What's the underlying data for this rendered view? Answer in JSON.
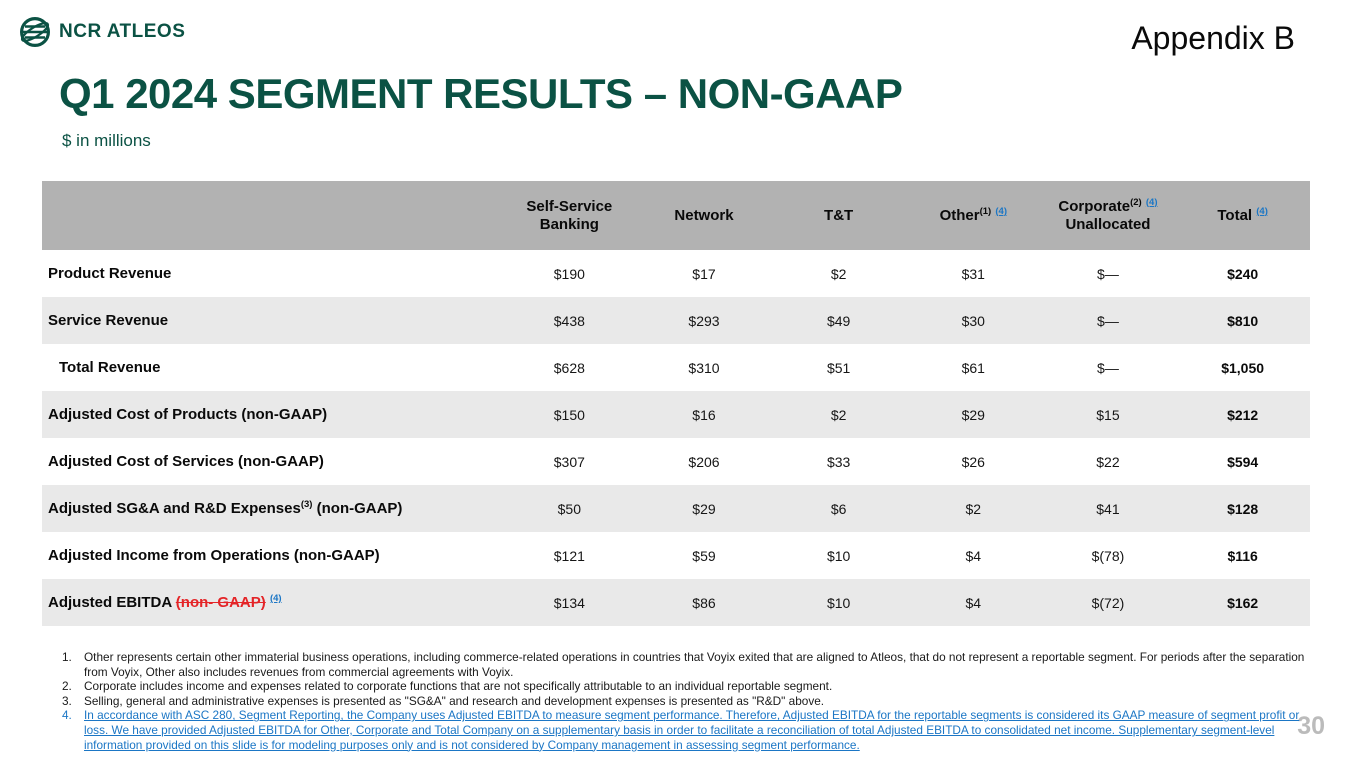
{
  "brand": {
    "logo_text": "NCR ATLEOS",
    "appendix_label": "Appendix B"
  },
  "header": {
    "title": "Q1 2024 SEGMENT RESULTS – NON-GAAP",
    "subtitle": "$ in millions"
  },
  "colors": {
    "brand_green": "#0B5244",
    "link_blue": "#1B76C5",
    "strike_red": "#E42528",
    "header_grey": "#B2B2B2",
    "row_grey": "#E9E9E9",
    "page_number_grey": "#BBBBBB"
  },
  "table": {
    "columns": [
      {
        "segments": [
          {
            "text": "Self-Service Banking"
          }
        ]
      },
      {
        "segments": [
          {
            "text": "Network"
          }
        ]
      },
      {
        "segments": [
          {
            "text": "T&T"
          }
        ]
      },
      {
        "segments": [
          {
            "text": "Other"
          },
          {
            "text": "(1)",
            "sup": true
          },
          {
            "text": " "
          },
          {
            "text": "(4)",
            "sup": true,
            "link": true
          }
        ]
      },
      {
        "segments": [
          {
            "text": "Corporate"
          },
          {
            "text": "(2)",
            "sup": true
          },
          {
            "text": " "
          },
          {
            "text": "(4)",
            "sup": true,
            "link": true
          },
          {
            "text": " Unallocated"
          }
        ]
      },
      {
        "segments": [
          {
            "text": "Total "
          },
          {
            "text": "(4)",
            "sup": true,
            "link": true
          }
        ]
      }
    ],
    "rows": [
      {
        "shaded": false,
        "indent": false,
        "label": [
          {
            "text": "Product Revenue"
          }
        ],
        "values": [
          "$190",
          "$17",
          "$2",
          "$31",
          "$—",
          "$240"
        ]
      },
      {
        "shaded": true,
        "indent": false,
        "label": [
          {
            "text": "Service Revenue"
          }
        ],
        "values": [
          "$438",
          "$293",
          "$49",
          "$30",
          "$—",
          "$810"
        ]
      },
      {
        "shaded": false,
        "indent": true,
        "label": [
          {
            "text": "Total Revenue"
          }
        ],
        "values": [
          "$628",
          "$310",
          "$51",
          "$61",
          "$—",
          "$1,050"
        ]
      },
      {
        "shaded": true,
        "indent": false,
        "label": [
          {
            "text": "Adjusted Cost of Products (non-GAAP)"
          }
        ],
        "values": [
          "$150",
          "$16",
          "$2",
          "$29",
          "$15",
          "$212"
        ]
      },
      {
        "shaded": false,
        "indent": false,
        "label": [
          {
            "text": "Adjusted Cost of Services (non-GAAP)"
          }
        ],
        "values": [
          "$307",
          "$206",
          "$33",
          "$26",
          "$22",
          "$594"
        ]
      },
      {
        "shaded": true,
        "indent": false,
        "label": [
          {
            "text": "Adjusted SG&A and R&D Expenses"
          },
          {
            "text": "(3)",
            "sup": true
          },
          {
            "text": " (non-GAAP)"
          }
        ],
        "values": [
          "$50",
          "$29",
          "$6",
          "$2",
          "$41",
          "$128"
        ]
      },
      {
        "shaded": false,
        "indent": false,
        "label": [
          {
            "text": "Adjusted Income from Operations (non-GAAP)"
          }
        ],
        "values": [
          "$121",
          "$59",
          "$10",
          "$4",
          "$(78)",
          "$116"
        ]
      },
      {
        "shaded": true,
        "indent": false,
        "label": [
          {
            "text": "Adjusted EBITDA "
          },
          {
            "text": "(non- GAAP)",
            "strike": true
          },
          {
            "text": " "
          },
          {
            "text": "(4)",
            "sup": true,
            "link": true
          }
        ],
        "values": [
          "$134",
          "$86",
          "$10",
          "$4",
          "$(72)",
          "$162"
        ]
      }
    ]
  },
  "footnotes": [
    {
      "number": "1.",
      "linked": false,
      "text": "Other represents certain other immaterial business operations, including commerce-related operations in countries that Voyix exited that are aligned to Atleos, that do not represent a reportable segment. For periods after the separation from Voyix, Other also includes revenues from commercial agreements with Voyix."
    },
    {
      "number": "2.",
      "linked": false,
      "text": "Corporate includes income and expenses related to corporate functions that are not specifically attributable to an individual reportable segment."
    },
    {
      "number": "3.",
      "linked": false,
      "text": "Selling, general and administrative expenses is presented as \"SG&A\" and research and development expenses is presented as \"R&D\" above."
    },
    {
      "number": "4.",
      "linked": true,
      "text": "In accordance with ASC 280, Segment Reporting, the Company uses Adjusted EBITDA to measure segment performance. Therefore, Adjusted EBITDA for the reportable segments is considered its GAAP measure of segment profit or loss.  We have provided Adjusted EBITDA for Other, Corporate and Total Company on a supplementary basis in order to facilitate a reconciliation of total Adjusted EBITDA to consolidated net income. Supplementary segment-level information provided on this slide is for modeling purposes only and is not considered by Company management in assessing segment performance."
    }
  ],
  "page_number": "30"
}
